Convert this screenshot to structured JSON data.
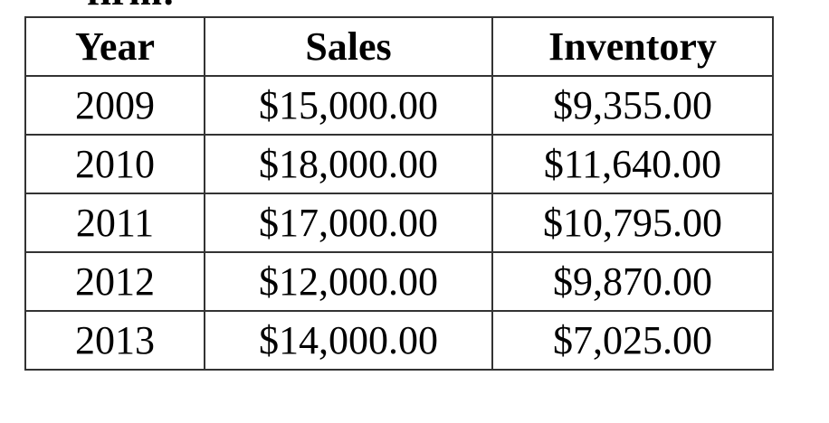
{
  "clipped_text": "firm:",
  "table": {
    "headers": [
      "Year",
      "Sales",
      "Inventory"
    ],
    "rows": [
      [
        "2009",
        "$15,000.00",
        "$9,355.00"
      ],
      [
        "2010",
        "$18,000.00",
        "$11,640.00"
      ],
      [
        "2011",
        "$17,000.00",
        "$10,795.00"
      ],
      [
        "2012",
        "$12,000.00",
        "$9,870.00"
      ],
      [
        "2013",
        "$14,000.00",
        "$7,025.00"
      ]
    ]
  }
}
